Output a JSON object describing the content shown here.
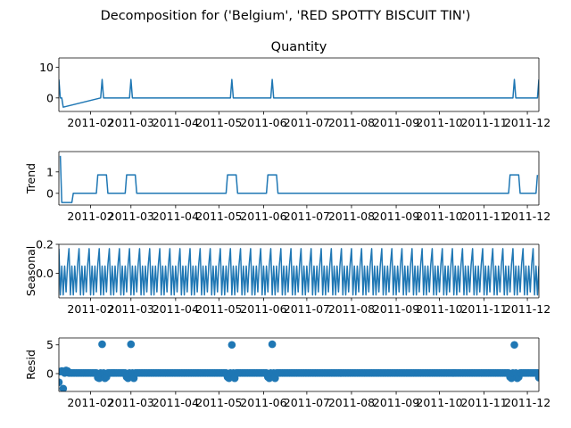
{
  "figure": {
    "suptitle": "Decomposition for ('Belgium', 'RED SPOTTY BISCUIT TIN')"
  },
  "x_ticks": [
    "2011-02",
    "2011-03",
    "2011-04",
    "2011-05",
    "2011-06",
    "2011-07",
    "2011-08",
    "2011-09",
    "2011-10",
    "2011-11",
    "2011-12"
  ],
  "colors": {
    "line": "#1f77b4",
    "axis": "#000000",
    "background": "#ffffff"
  },
  "chart_data": [
    {
      "type": "line",
      "title": "Quantity",
      "ylabel": "",
      "xlim": [
        "2011-01-10",
        "2011-12-09"
      ],
      "ylim": [
        -4.4,
        13.0
      ],
      "yticks": [
        0,
        10
      ],
      "x": [
        "2011-01-10",
        "2011-01-11",
        "2011-01-12",
        "2011-01-13",
        "2011-02-08",
        "2011-02-09",
        "2011-02-10",
        "2011-02-28",
        "2011-03-01",
        "2011-03-02",
        "2011-05-09",
        "2011-05-10",
        "2011-05-11",
        "2011-06-06",
        "2011-06-07",
        "2011-06-08",
        "2011-11-21",
        "2011-11-22",
        "2011-11-23",
        "2011-12-08",
        "2011-12-09"
      ],
      "values": [
        6,
        0,
        0,
        -3,
        0,
        6,
        0,
        0,
        6,
        0,
        0,
        6,
        0,
        0,
        6,
        0,
        0,
        6,
        0,
        0,
        6
      ]
    },
    {
      "type": "line",
      "title": "",
      "ylabel": "Trend",
      "xlim": [
        "2011-01-10",
        "2011-12-09"
      ],
      "ylim": [
        -0.55,
        1.95
      ],
      "yticks": [
        0,
        1
      ],
      "x": [
        "2011-01-11",
        "2011-01-12",
        "2011-01-19",
        "2011-01-20",
        "2011-02-05",
        "2011-02-06",
        "2011-02-12",
        "2011-02-13",
        "2011-02-25",
        "2011-02-26",
        "2011-03-04",
        "2011-03-05",
        "2011-05-06",
        "2011-05-07",
        "2011-05-13",
        "2011-05-14",
        "2011-06-03",
        "2011-06-04",
        "2011-06-10",
        "2011-06-11",
        "2011-11-18",
        "2011-11-19",
        "2011-11-25",
        "2011-11-26",
        "2011-12-07",
        "2011-12-08"
      ],
      "values": [
        1.75,
        -0.43,
        -0.43,
        0,
        0,
        0.86,
        0.86,
        0,
        0,
        0.86,
        0.86,
        0,
        0,
        0.86,
        0.86,
        0,
        0,
        0.86,
        0.86,
        0,
        0,
        0.86,
        0.86,
        0,
        0,
        0.86
      ]
    },
    {
      "type": "line",
      "title": "",
      "ylabel": "Seasonal",
      "xlim": [
        "2011-01-10",
        "2011-12-09"
      ],
      "ylim": [
        -0.17,
        0.2
      ],
      "yticks": [
        0.0,
        0.2
      ],
      "ytick_labels": [
        "0.0",
        "0.2"
      ],
      "period_days": 7,
      "weekly_pattern": [
        0.17,
        -0.15,
        0.05,
        -0.15,
        0.05,
        -0.13,
        0.06
      ]
    },
    {
      "type": "scatter",
      "title": "",
      "ylabel": "Resid",
      "xlim": [
        "2011-01-10",
        "2011-12-09"
      ],
      "ylim": [
        -3.1,
        6.2
      ],
      "yticks": [
        0,
        5
      ],
      "baseline": 0.1,
      "points": [
        {
          "x": "2011-01-10",
          "y": -1.5
        },
        {
          "x": "2011-01-11",
          "y": 0.35
        },
        {
          "x": "2011-01-12",
          "y": 0.45
        },
        {
          "x": "2011-01-13",
          "y": -2.6
        },
        {
          "x": "2011-01-15",
          "y": 0.55
        },
        {
          "x": "2011-01-16",
          "y": 0.45
        },
        {
          "x": "2011-02-06",
          "y": -0.7
        },
        {
          "x": "2011-02-07",
          "y": -0.8
        },
        {
          "x": "2011-02-09",
          "y": 5.1
        },
        {
          "x": "2011-02-11",
          "y": -0.8
        },
        {
          "x": "2011-02-12",
          "y": -0.6
        },
        {
          "x": "2011-02-26",
          "y": -0.6
        },
        {
          "x": "2011-02-27",
          "y": -0.8
        },
        {
          "x": "2011-03-01",
          "y": 5.1
        },
        {
          "x": "2011-03-03",
          "y": -0.8
        },
        {
          "x": "2011-05-07",
          "y": -0.6
        },
        {
          "x": "2011-05-08",
          "y": -0.8
        },
        {
          "x": "2011-05-10",
          "y": 5.0
        },
        {
          "x": "2011-05-12",
          "y": -0.8
        },
        {
          "x": "2011-06-04",
          "y": -0.6
        },
        {
          "x": "2011-06-05",
          "y": -0.8
        },
        {
          "x": "2011-06-07",
          "y": 5.1
        },
        {
          "x": "2011-06-09",
          "y": -0.8
        },
        {
          "x": "2011-11-19",
          "y": -0.6
        },
        {
          "x": "2011-11-20",
          "y": -0.8
        },
        {
          "x": "2011-11-22",
          "y": 5.0
        },
        {
          "x": "2011-11-24",
          "y": -0.8
        },
        {
          "x": "2011-11-25",
          "y": -0.6
        },
        {
          "x": "2011-12-09",
          "y": -0.7
        }
      ]
    }
  ]
}
